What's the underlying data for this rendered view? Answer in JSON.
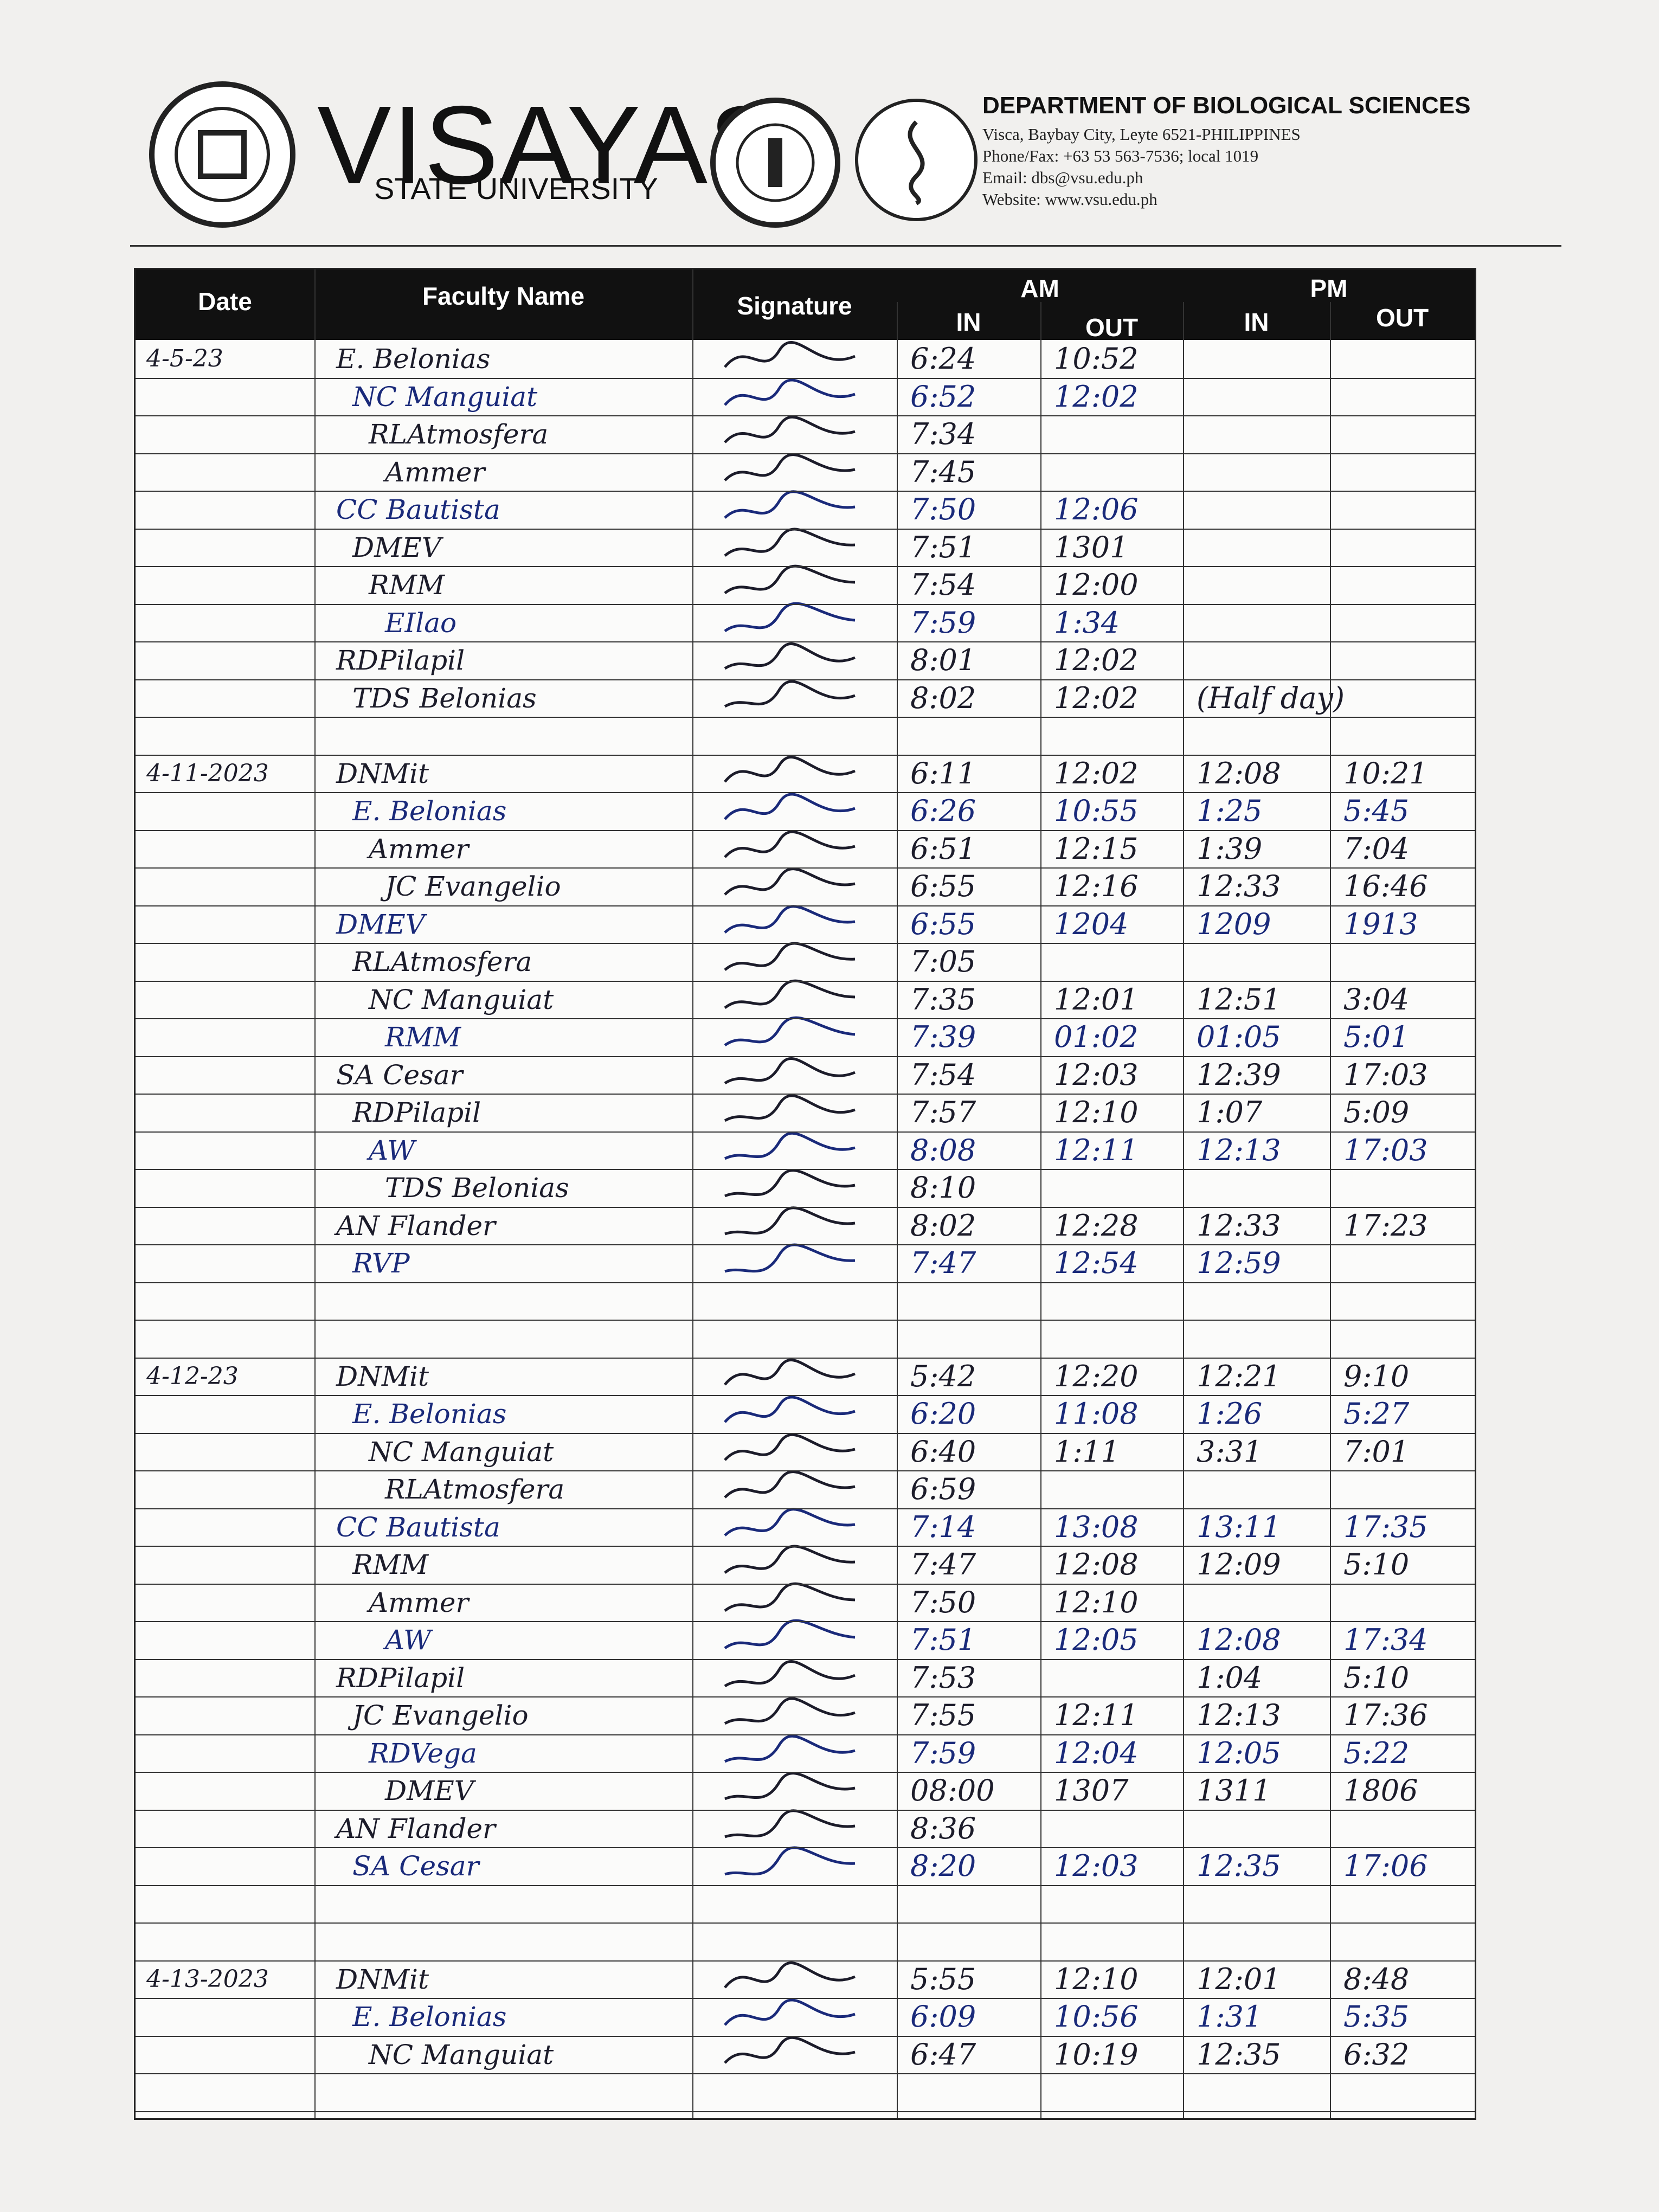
{
  "header": {
    "university": "VISAYAS",
    "university_sub": "STATE UNIVERSITY",
    "department": "DEPARTMENT OF BIOLOGICAL SCIENCES",
    "address": "Visca, Baybay City, Leyte 6521-PHILIPPINES",
    "phone": "Phone/Fax: +63 53 563-7536; local 1019",
    "email": "Email: dbs@vsu.edu.ph",
    "website": "Website: www.vsu.edu.ph"
  },
  "table": {
    "columns": {
      "date": "Date",
      "faculty_name": "Faculty Name",
      "signature": "Signature",
      "am": "AM",
      "pm": "PM",
      "am_in": "IN",
      "am_out": "OUT",
      "pm_in": "IN",
      "pm_out": "OUT"
    },
    "blocks": [
      {
        "date": "4-5-23",
        "rows": [
          {
            "name": "E. Belonias",
            "am_in": "6:24",
            "am_out": "10:52"
          },
          {
            "name": "NC Manguiat",
            "am_in": "6:52",
            "am_out": "12:02"
          },
          {
            "name": "RLAtmosfera",
            "am_in": "7:34"
          },
          {
            "name": "Ammer",
            "am_in": "7:45"
          },
          {
            "name": "CC Bautista",
            "am_in": "7:50",
            "am_out": "12:06"
          },
          {
            "name": "DMEV",
            "am_in": "7:51",
            "am_out": "1301"
          },
          {
            "name": "RMM",
            "am_in": "7:54",
            "am_out": "12:00"
          },
          {
            "name": "EIlao",
            "am_in": "7:59",
            "am_out": "1:34"
          },
          {
            "name": "RDPilapil",
            "am_in": "8:01",
            "am_out": "12:02"
          },
          {
            "name": "TDS Belonias",
            "am_in": "8:02",
            "am_out": "12:02",
            "pm_in": "(Half day)"
          }
        ]
      },
      {
        "date": "4-11-2023",
        "rows": [
          {
            "name": "DNMit",
            "am_in": "6:11",
            "am_out": "12:02",
            "pm_in": "12:08",
            "pm_out": "10:21"
          },
          {
            "name": "E. Belonias",
            "am_in": "6:26",
            "am_out": "10:55",
            "pm_in": "1:25",
            "pm_out": "5:45"
          },
          {
            "name": "Ammer",
            "am_in": "6:51",
            "am_out": "12:15",
            "pm_in": "1:39",
            "pm_out": "7:04"
          },
          {
            "name": "JC Evangelio",
            "am_in": "6:55",
            "am_out": "12:16",
            "pm_in": "12:33",
            "pm_out": "16:46"
          },
          {
            "name": "DMEV",
            "am_in": "6:55",
            "am_out": "1204",
            "pm_in": "1209",
            "pm_out": "1913"
          },
          {
            "name": "RLAtmosfera",
            "am_in": "7:05"
          },
          {
            "name": "NC Manguiat",
            "am_in": "7:35",
            "am_out": "12:01",
            "pm_in": "12:51",
            "pm_out": "3:04"
          },
          {
            "name": "RMM",
            "am_in": "7:39",
            "am_out": "01:02",
            "pm_in": "01:05",
            "pm_out": "5:01"
          },
          {
            "name": "SA Cesar",
            "am_in": "7:54",
            "am_out": "12:03",
            "pm_in": "12:39",
            "pm_out": "17:03"
          },
          {
            "name": "RDPilapil",
            "am_in": "7:57",
            "am_out": "12:10",
            "pm_in": "1:07",
            "pm_out": "5:09"
          },
          {
            "name": "AW",
            "am_in": "8:08",
            "am_out": "12:11",
            "pm_in": "12:13",
            "pm_out": "17:03"
          },
          {
            "name": "TDS Belonias",
            "am_in": "8:10"
          },
          {
            "name": "AN Flander",
            "am_in": "8:02",
            "am_out": "12:28",
            "pm_in": "12:33",
            "pm_out": "17:23"
          },
          {
            "name": "RVP",
            "am_in": "7:47",
            "am_out": "12:54",
            "pm_in": "12:59"
          }
        ]
      },
      {
        "date": "4-12-23",
        "rows": [
          {
            "name": "DNMit",
            "am_in": "5:42",
            "am_out": "12:20",
            "pm_in": "12:21",
            "pm_out": "9:10"
          },
          {
            "name": "E. Belonias",
            "am_in": "6:20",
            "am_out": "11:08",
            "pm_in": "1:26",
            "pm_out": "5:27"
          },
          {
            "name": "NC Manguiat",
            "am_in": "6:40",
            "am_out": "1:11",
            "pm_in": "3:31",
            "pm_out": "7:01"
          },
          {
            "name": "RLAtmosfera",
            "am_in": "6:59"
          },
          {
            "name": "CC Bautista",
            "am_in": "7:14",
            "am_out": "13:08",
            "pm_in": "13:11",
            "pm_out": "17:35"
          },
          {
            "name": "RMM",
            "am_in": "7:47",
            "am_out": "12:08",
            "pm_in": "12:09",
            "pm_out": "5:10"
          },
          {
            "name": "Ammer",
            "am_in": "7:50",
            "am_out": "12:10"
          },
          {
            "name": "AW",
            "am_in": "7:51",
            "am_out": "12:05",
            "pm_in": "12:08",
            "pm_out": "17:34"
          },
          {
            "name": "RDPilapil",
            "am_in": "7:53",
            "pm_in": "1:04",
            "pm_out": "5:10"
          },
          {
            "name": "JC Evangelio",
            "am_in": "7:55",
            "am_out": "12:11",
            "pm_in": "12:13",
            "pm_out": "17:36"
          },
          {
            "name": "RDVega",
            "am_in": "7:59",
            "am_out": "12:04",
            "pm_in": "12:05",
            "pm_out": "5:22"
          },
          {
            "name": "DMEV",
            "am_in": "08:00",
            "am_out": "1307",
            "pm_in": "1311",
            "pm_out": "1806"
          },
          {
            "name": "AN Flander",
            "am_in": "8:36"
          },
          {
            "name": "SA Cesar",
            "am_in": "8:20",
            "am_out": "12:03",
            "pm_in": "12:35",
            "pm_out": "17:06"
          }
        ]
      },
      {
        "date": "4-13-2023",
        "rows": [
          {
            "name": "DNMit",
            "am_in": "5:55",
            "am_out": "12:10",
            "pm_in": "12:01",
            "pm_out": "8:48"
          },
          {
            "name": "E. Belonias",
            "am_in": "6:09",
            "am_out": "10:56",
            "pm_in": "1:31",
            "pm_out": "5:35"
          },
          {
            "name": "NC Manguiat",
            "am_in": "6:47",
            "am_out": "10:19",
            "pm_in": "12:35",
            "pm_out": "6:32"
          }
        ]
      }
    ]
  }
}
